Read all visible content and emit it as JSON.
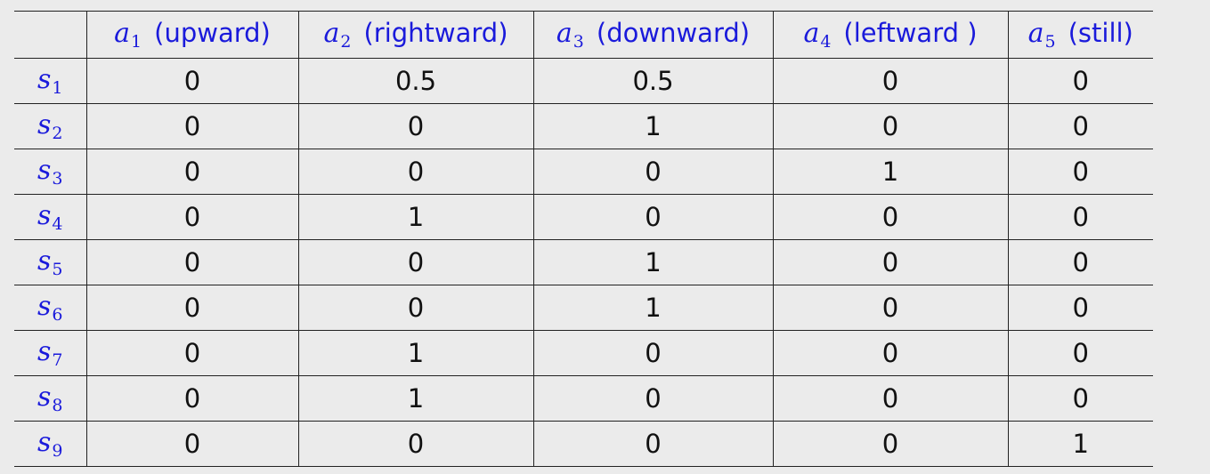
{
  "table": {
    "corner": "",
    "columns": [
      {
        "sym": "a",
        "sub": "1",
        "label": "(upward)"
      },
      {
        "sym": "a",
        "sub": "2",
        "label": "(rightward)"
      },
      {
        "sym": "a",
        "sub": "3",
        "label": "(downward)"
      },
      {
        "sym": "a",
        "sub": "4",
        "label": "(leftward )"
      },
      {
        "sym": "a",
        "sub": "5",
        "label": "(still)"
      }
    ],
    "rows": [
      {
        "sym": "s",
        "sub": "1",
        "values": [
          "0",
          "0.5",
          "0.5",
          "0",
          "0"
        ]
      },
      {
        "sym": "s",
        "sub": "2",
        "values": [
          "0",
          "0",
          "1",
          "0",
          "0"
        ]
      },
      {
        "sym": "s",
        "sub": "3",
        "values": [
          "0",
          "0",
          "0",
          "1",
          "0"
        ]
      },
      {
        "sym": "s",
        "sub": "4",
        "values": [
          "0",
          "1",
          "0",
          "0",
          "0"
        ]
      },
      {
        "sym": "s",
        "sub": "5",
        "values": [
          "0",
          "0",
          "1",
          "0",
          "0"
        ]
      },
      {
        "sym": "s",
        "sub": "6",
        "values": [
          "0",
          "0",
          "1",
          "0",
          "0"
        ]
      },
      {
        "sym": "s",
        "sub": "7",
        "values": [
          "0",
          "1",
          "0",
          "0",
          "0"
        ]
      },
      {
        "sym": "s",
        "sub": "8",
        "values": [
          "0",
          "1",
          "0",
          "0",
          "0"
        ]
      },
      {
        "sym": "s",
        "sub": "9",
        "values": [
          "0",
          "0",
          "0",
          "0",
          "1"
        ]
      }
    ]
  },
  "colors": {
    "label_blue": "#1a1adb",
    "text": "#111111",
    "background": "#ebebeb",
    "rule": "#222222"
  }
}
